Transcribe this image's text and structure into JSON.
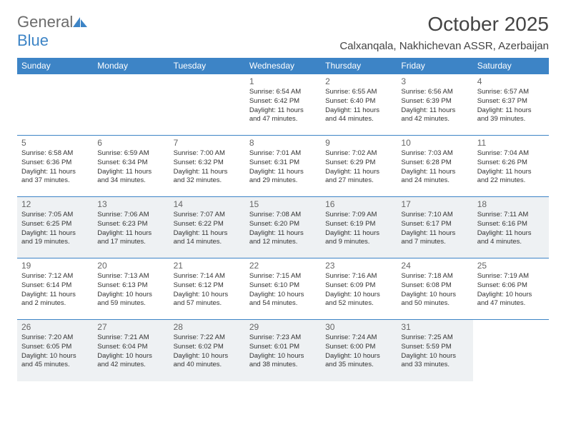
{
  "brand": {
    "part1": "General",
    "part2": "Blue"
  },
  "title": "October 2025",
  "location": "Calxanqala, Nakhichevan ASSR, Azerbaijan",
  "colors": {
    "accent": "#3d84c6",
    "alt_row": "#eef1f3",
    "text": "#333333"
  },
  "day_headers": [
    "Sunday",
    "Monday",
    "Tuesday",
    "Wednesday",
    "Thursday",
    "Friday",
    "Saturday"
  ],
  "weeks": [
    [
      null,
      null,
      null,
      {
        "n": "1",
        "r": "6:54 AM",
        "s": "6:42 PM",
        "d": "11 hours and 47 minutes."
      },
      {
        "n": "2",
        "r": "6:55 AM",
        "s": "6:40 PM",
        "d": "11 hours and 44 minutes."
      },
      {
        "n": "3",
        "r": "6:56 AM",
        "s": "6:39 PM",
        "d": "11 hours and 42 minutes."
      },
      {
        "n": "4",
        "r": "6:57 AM",
        "s": "6:37 PM",
        "d": "11 hours and 39 minutes."
      }
    ],
    [
      {
        "n": "5",
        "r": "6:58 AM",
        "s": "6:36 PM",
        "d": "11 hours and 37 minutes."
      },
      {
        "n": "6",
        "r": "6:59 AM",
        "s": "6:34 PM",
        "d": "11 hours and 34 minutes."
      },
      {
        "n": "7",
        "r": "7:00 AM",
        "s": "6:32 PM",
        "d": "11 hours and 32 minutes."
      },
      {
        "n": "8",
        "r": "7:01 AM",
        "s": "6:31 PM",
        "d": "11 hours and 29 minutes."
      },
      {
        "n": "9",
        "r": "7:02 AM",
        "s": "6:29 PM",
        "d": "11 hours and 27 minutes."
      },
      {
        "n": "10",
        "r": "7:03 AM",
        "s": "6:28 PM",
        "d": "11 hours and 24 minutes."
      },
      {
        "n": "11",
        "r": "7:04 AM",
        "s": "6:26 PM",
        "d": "11 hours and 22 minutes."
      }
    ],
    [
      {
        "n": "12",
        "r": "7:05 AM",
        "s": "6:25 PM",
        "d": "11 hours and 19 minutes."
      },
      {
        "n": "13",
        "r": "7:06 AM",
        "s": "6:23 PM",
        "d": "11 hours and 17 minutes."
      },
      {
        "n": "14",
        "r": "7:07 AM",
        "s": "6:22 PM",
        "d": "11 hours and 14 minutes."
      },
      {
        "n": "15",
        "r": "7:08 AM",
        "s": "6:20 PM",
        "d": "11 hours and 12 minutes."
      },
      {
        "n": "16",
        "r": "7:09 AM",
        "s": "6:19 PM",
        "d": "11 hours and 9 minutes."
      },
      {
        "n": "17",
        "r": "7:10 AM",
        "s": "6:17 PM",
        "d": "11 hours and 7 minutes."
      },
      {
        "n": "18",
        "r": "7:11 AM",
        "s": "6:16 PM",
        "d": "11 hours and 4 minutes."
      }
    ],
    [
      {
        "n": "19",
        "r": "7:12 AM",
        "s": "6:14 PM",
        "d": "11 hours and 2 minutes."
      },
      {
        "n": "20",
        "r": "7:13 AM",
        "s": "6:13 PM",
        "d": "10 hours and 59 minutes."
      },
      {
        "n": "21",
        "r": "7:14 AM",
        "s": "6:12 PM",
        "d": "10 hours and 57 minutes."
      },
      {
        "n": "22",
        "r": "7:15 AM",
        "s": "6:10 PM",
        "d": "10 hours and 54 minutes."
      },
      {
        "n": "23",
        "r": "7:16 AM",
        "s": "6:09 PM",
        "d": "10 hours and 52 minutes."
      },
      {
        "n": "24",
        "r": "7:18 AM",
        "s": "6:08 PM",
        "d": "10 hours and 50 minutes."
      },
      {
        "n": "25",
        "r": "7:19 AM",
        "s": "6:06 PM",
        "d": "10 hours and 47 minutes."
      }
    ],
    [
      {
        "n": "26",
        "r": "7:20 AM",
        "s": "6:05 PM",
        "d": "10 hours and 45 minutes."
      },
      {
        "n": "27",
        "r": "7:21 AM",
        "s": "6:04 PM",
        "d": "10 hours and 42 minutes."
      },
      {
        "n": "28",
        "r": "7:22 AM",
        "s": "6:02 PM",
        "d": "10 hours and 40 minutes."
      },
      {
        "n": "29",
        "r": "7:23 AM",
        "s": "6:01 PM",
        "d": "10 hours and 38 minutes."
      },
      {
        "n": "30",
        "r": "7:24 AM",
        "s": "6:00 PM",
        "d": "10 hours and 35 minutes."
      },
      {
        "n": "31",
        "r": "7:25 AM",
        "s": "5:59 PM",
        "d": "10 hours and 33 minutes."
      },
      null
    ]
  ],
  "labels": {
    "sunrise": "Sunrise:",
    "sunset": "Sunset:",
    "daylight": "Daylight:"
  }
}
